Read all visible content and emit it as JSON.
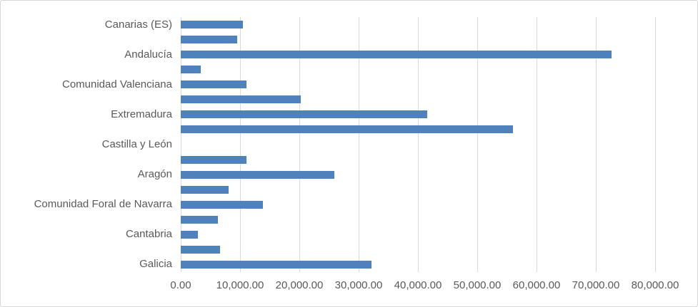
{
  "chart_data": {
    "type": "bar",
    "orientation": "horizontal",
    "title": "",
    "legend": false,
    "grid": true,
    "xlim": [
      0,
      80000
    ],
    "x_tick_values": [
      0,
      10000,
      20000,
      30000,
      40000,
      50000,
      60000,
      70000,
      80000
    ],
    "x_tick_labels": [
      "0.00",
      "10,000.00",
      "20,000.00",
      "30,000.00",
      "40,000.00",
      "50,000.00",
      "60,000.00",
      "70,000.00",
      "80,000.00"
    ],
    "categories": [
      "Canarias (ES)",
      "",
      "Andalucía",
      "",
      "Comunidad Valenciana",
      "",
      "Extremadura",
      "",
      "Castilla y León",
      "",
      "Aragón",
      "",
      "Comunidad Foral de Navarra",
      "",
      "Cantabria",
      "",
      "Galicia"
    ],
    "values": [
      10500,
      9500,
      72700,
      3400,
      11100,
      20200,
      41600,
      56000,
      0,
      11100,
      25900,
      8100,
      13900,
      6300,
      2900,
      6600,
      32200
    ]
  },
  "colors": {
    "bar": "#4f81bd",
    "gridline": "#d9d9d9",
    "axis_label": "#595959",
    "frame_border": "#d7d7d7",
    "background": "#ffffff"
  }
}
